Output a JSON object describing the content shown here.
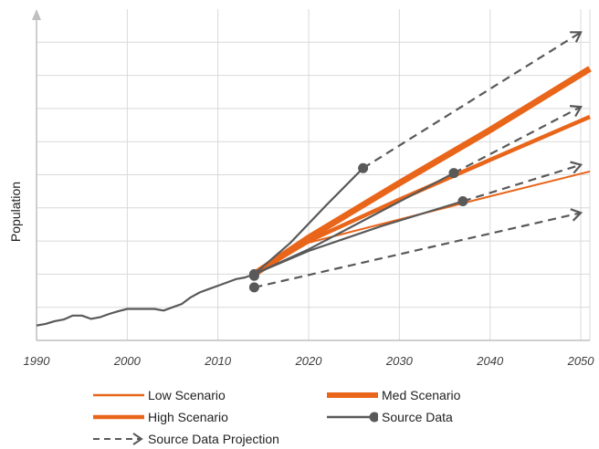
{
  "chart_data": {
    "type": "line",
    "title": "",
    "xlabel": "",
    "ylabel": "Population",
    "xlim": [
      1990,
      2051
    ],
    "ylim": [
      0,
      1
    ],
    "grid": true,
    "legend_position": "bottom",
    "x_ticks": [
      "1990",
      "2000",
      "2010",
      "2020",
      "2030",
      "2040",
      "2050"
    ],
    "colors": {
      "scenario": "#E8651A",
      "source": "#595959",
      "grid": "#d9d9d9",
      "axis": "#bfbfbf"
    },
    "source_history": {
      "x": [
        1990,
        1991,
        1992,
        1993,
        1994,
        1995,
        1996,
        1997,
        1998,
        1999,
        2000,
        2001,
        2002,
        2003,
        2004,
        2005,
        2006,
        2007,
        2008,
        2009,
        2010,
        2011,
        2012,
        2013,
        2014
      ],
      "y": [
        0.045,
        0.05,
        0.058,
        0.063,
        0.075,
        0.075,
        0.065,
        0.07,
        0.08,
        0.088,
        0.095,
        0.095,
        0.095,
        0.095,
        0.09,
        0.1,
        0.11,
        0.13,
        0.145,
        0.155,
        0.165,
        0.175,
        0.185,
        0.19,
        0.2
      ]
    },
    "series": [
      {
        "name": "Low Scenario",
        "x": [
          2014,
          2020,
          2030,
          2040,
          2051
        ],
        "y": [
          0.2,
          0.295,
          0.365,
          0.435,
          0.51
        ]
      },
      {
        "name": "Med Scenario",
        "x": [
          2014,
          2020,
          2030,
          2040,
          2051
        ],
        "y": [
          0.2,
          0.31,
          0.475,
          0.635,
          0.82
        ]
      },
      {
        "name": "High Scenario",
        "x": [
          2014,
          2020,
          2030,
          2040,
          2051
        ],
        "y": [
          0.2,
          0.3,
          0.425,
          0.545,
          0.675
        ]
      },
      {
        "name": "Source Data",
        "paths": [
          {
            "x": [
              2014,
              2018,
              2022,
              2026
            ],
            "y": [
              0.2,
              0.295,
              0.41,
              0.52
            ]
          },
          {
            "x": [
              2014,
              2020,
              2028,
              2036
            ],
            "y": [
              0.2,
              0.275,
              0.39,
              0.505
            ]
          },
          {
            "x": [
              2014,
              2020,
              2028,
              2037
            ],
            "y": [
              0.2,
              0.27,
              0.345,
              0.42
            ]
          }
        ],
        "markers": {
          "x": [
            2014,
            2014,
            2014,
            2026,
            2036,
            2037
          ],
          "y": [
            0.2,
            0.195,
            0.16,
            0.52,
            0.505,
            0.42
          ]
        }
      },
      {
        "name": "Source Data Projection",
        "lines": [
          {
            "x": [
              2026,
              2050
            ],
            "y": [
              0.52,
              0.93
            ]
          },
          {
            "x": [
              2036,
              2050
            ],
            "y": [
              0.505,
              0.705
            ]
          },
          {
            "x": [
              2037,
              2050
            ],
            "y": [
              0.42,
              0.53
            ]
          },
          {
            "x": [
              2014,
              2050
            ],
            "y": [
              0.16,
              0.385
            ]
          }
        ]
      }
    ],
    "legend": {
      "items": [
        {
          "label": "Low Scenario",
          "style": "thin-orange"
        },
        {
          "label": "Med Scenario",
          "style": "thick-orange"
        },
        {
          "label": "High Scenario",
          "style": "medium-orange"
        },
        {
          "label": "Source Data",
          "style": "gray-marker"
        },
        {
          "label": "Source Data Projection",
          "style": "dashed-arrow"
        }
      ]
    }
  }
}
